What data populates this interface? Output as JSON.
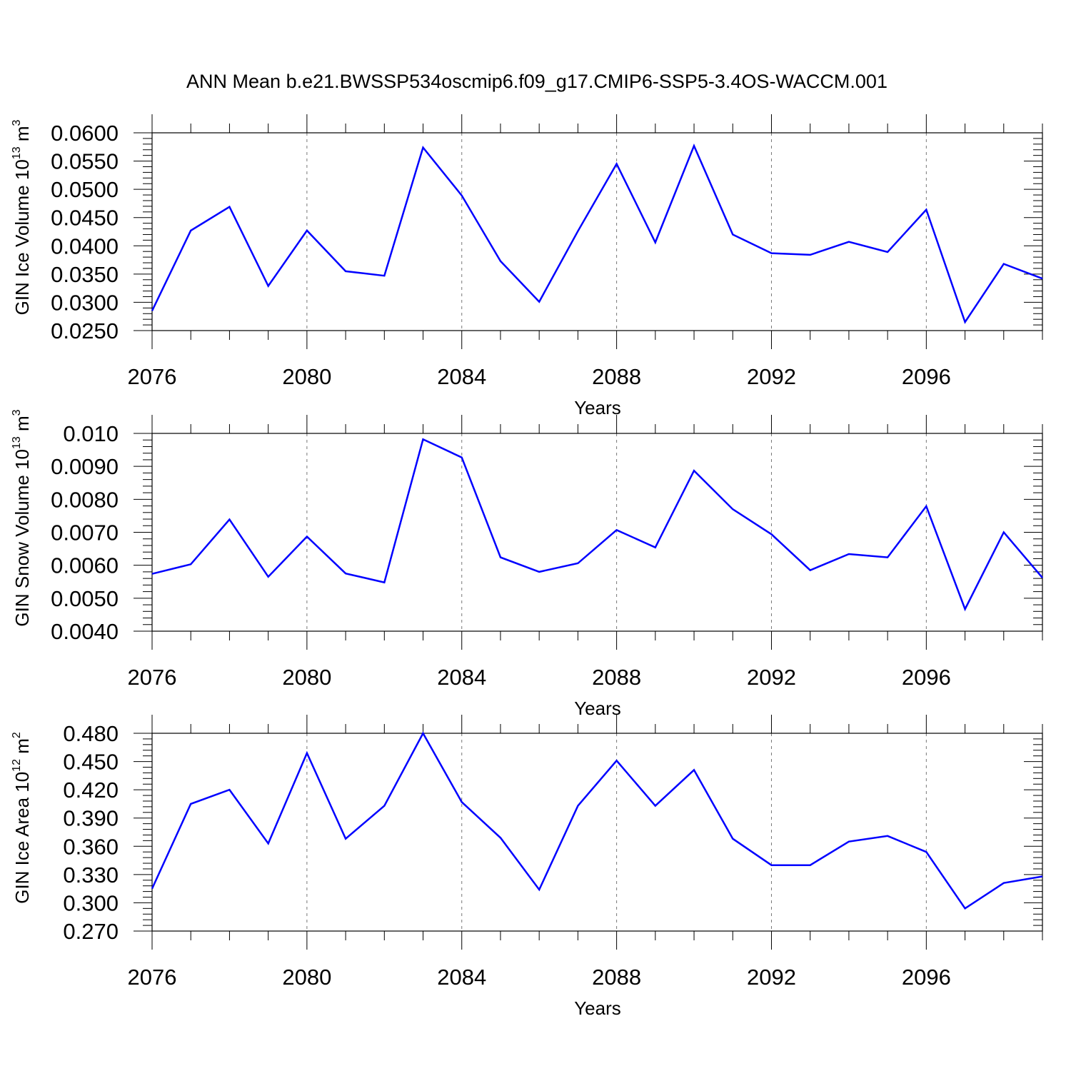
{
  "chart_data": {
    "title": "ANN Mean b.e21.BWSSP534oscmip6.f09_g17.CMIP6-SSP5-3.4OS-WACCM.001",
    "panels": [
      {
        "type": "line",
        "ylabel": {
          "text": "GIN Ice Volume 10",
          "exp": "13",
          "unit": "m",
          "unit_exp": "3"
        },
        "xlabel": "Years",
        "ylim": [
          0.025,
          0.06
        ],
        "yticks": [
          "0.0600",
          "0.0550",
          "0.0500",
          "0.0450",
          "0.0400",
          "0.0350",
          "0.0300",
          "0.0250"
        ],
        "ytick_values": [
          0.06,
          0.055,
          0.05,
          0.045,
          0.04,
          0.035,
          0.03,
          0.025
        ],
        "xlim": [
          2076,
          2099
        ],
        "xticks": [
          "2076",
          "2080",
          "2084",
          "2088",
          "2092",
          "2096"
        ],
        "xtick_values": [
          2076,
          2080,
          2084,
          2088,
          2092,
          2096
        ],
        "grid": "vertical dashed at major x ticks",
        "series": [
          {
            "color": "#0000ff",
            "x": [
              2076,
              2077,
              2078,
              2079,
              2080,
              2081,
              2082,
              2083,
              2084,
              2085,
              2086,
              2087,
              2088,
              2089,
              2090,
              2091,
              2092,
              2093,
              2094,
              2095,
              2096,
              2097,
              2098,
              2099
            ],
            "y": [
              0.0285,
              0.0427,
              0.0469,
              0.0329,
              0.0427,
              0.0355,
              0.0347,
              0.0574,
              0.0489,
              0.0373,
              0.0301,
              0.0426,
              0.0545,
              0.0406,
              0.0577,
              0.042,
              0.0387,
              0.0384,
              0.0407,
              0.0389,
              0.0464,
              0.0265,
              0.0368,
              0.0342
            ]
          }
        ]
      },
      {
        "type": "line",
        "ylabel": {
          "text": "GIN Snow Volume 10",
          "exp": "13",
          "unit": "m",
          "unit_exp": "3"
        },
        "xlabel": "Years",
        "ylim": [
          0.004,
          0.01
        ],
        "yticks": [
          "0.010",
          "0.0090",
          "0.0080",
          "0.0070",
          "0.0060",
          "0.0050",
          "0.0040"
        ],
        "ytick_values": [
          0.01,
          0.009,
          0.008,
          0.007,
          0.006,
          0.005,
          0.004
        ],
        "xlim": [
          2076,
          2099
        ],
        "xticks": [
          "2076",
          "2080",
          "2084",
          "2088",
          "2092",
          "2096"
        ],
        "xtick_values": [
          2076,
          2080,
          2084,
          2088,
          2092,
          2096
        ],
        "grid": "vertical dashed at major x ticks",
        "series": [
          {
            "color": "#0000ff",
            "x": [
              2076,
              2077,
              2078,
              2079,
              2080,
              2081,
              2082,
              2083,
              2084,
              2085,
              2086,
              2087,
              2088,
              2089,
              2090,
              2091,
              2092,
              2093,
              2094,
              2095,
              2096,
              2097,
              2098,
              2099
            ],
            "y": [
              0.00574,
              0.00603,
              0.00739,
              0.00565,
              0.00687,
              0.00575,
              0.00548,
              0.00982,
              0.00927,
              0.00624,
              0.0058,
              0.00606,
              0.00707,
              0.00654,
              0.00887,
              0.0077,
              0.00694,
              0.00585,
              0.00634,
              0.00624,
              0.00779,
              0.00467,
              0.007,
              0.00562
            ]
          }
        ]
      },
      {
        "type": "line",
        "ylabel": {
          "text": "GIN Ice Area 10",
          "exp": "12",
          "unit": "m",
          "unit_exp": "2"
        },
        "xlabel": "Years",
        "ylim": [
          0.27,
          0.48
        ],
        "yticks": [
          "0.480",
          "0.450",
          "0.420",
          "0.390",
          "0.360",
          "0.330",
          "0.300",
          "0.270"
        ],
        "ytick_values": [
          0.48,
          0.45,
          0.42,
          0.39,
          0.36,
          0.33,
          0.3,
          0.27
        ],
        "xlim": [
          2076,
          2099
        ],
        "xticks": [
          "2076",
          "2080",
          "2084",
          "2088",
          "2092",
          "2096"
        ],
        "xtick_values": [
          2076,
          2080,
          2084,
          2088,
          2092,
          2096
        ],
        "grid": "vertical dashed at major x ticks",
        "series": [
          {
            "color": "#0000ff",
            "x": [
              2076,
              2077,
              2078,
              2079,
              2080,
              2081,
              2082,
              2083,
              2084,
              2085,
              2086,
              2087,
              2088,
              2089,
              2090,
              2091,
              2092,
              2093,
              2094,
              2095,
              2096,
              2097,
              2098,
              2099
            ],
            "y": [
              0.315,
              0.405,
              0.42,
              0.363,
              0.459,
              0.368,
              0.403,
              0.48,
              0.407,
              0.369,
              0.314,
              0.403,
              0.451,
              0.403,
              0.441,
              0.368,
              0.34,
              0.34,
              0.365,
              0.371,
              0.354,
              0.294,
              0.321,
              0.328
            ]
          }
        ]
      }
    ]
  }
}
